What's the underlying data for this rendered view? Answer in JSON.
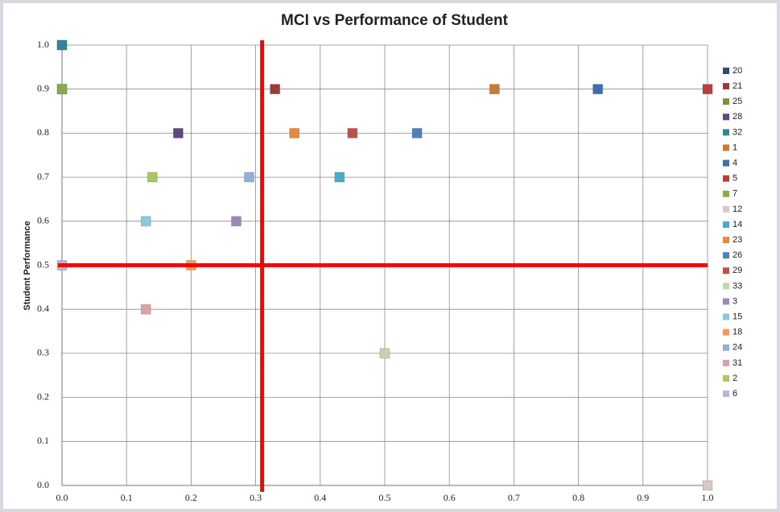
{
  "chart_data": {
    "type": "scatter",
    "title": "MCI vs Performance of Student",
    "ylabel": "Student Performance",
    "xlim": [
      0,
      1
    ],
    "ylim": [
      0,
      1
    ],
    "xticks": [
      {
        "value": 0,
        "label": "0.0"
      },
      0.1,
      0.2,
      0.3,
      0.4,
      0.5,
      0.6,
      0.7,
      0.8,
      0.9,
      {
        "value": 1,
        "label": "1.0"
      }
    ],
    "yticks": [
      {
        "value": 0,
        "label": "0.0"
      },
      0.1,
      0.2,
      0.3,
      0.4,
      0.5,
      0.6,
      0.7,
      0.8,
      0.9,
      {
        "value": 1,
        "label": "1.0"
      }
    ],
    "grid": true,
    "legend": "right",
    "threshold_lines": {
      "x": 0.31,
      "y": 0.5,
      "color": "#ff0000"
    },
    "series": [
      {
        "name": "20",
        "color": "#2c4d75",
        "x": [
          0
        ],
        "values": [
          1
        ]
      },
      {
        "name": "21",
        "color": "#9b3b38",
        "x": [
          0.33
        ],
        "values": [
          0.9
        ]
      },
      {
        "name": "25",
        "color": "#77933c",
        "x": [
          0
        ],
        "values": [
          0.9
        ]
      },
      {
        "name": "28",
        "color": "#5f4a7b",
        "x": [
          0.18
        ],
        "values": [
          0.8
        ]
      },
      {
        "name": "32",
        "color": "#31859c",
        "x": [
          0
        ],
        "values": [
          1
        ]
      },
      {
        "name": "1",
        "color": "#c77c30",
        "x": [
          0.67
        ],
        "values": [
          0.9
        ]
      },
      {
        "name": "4",
        "color": "#3d6fae",
        "x": [
          0.83
        ],
        "values": [
          0.9
        ]
      },
      {
        "name": "5",
        "color": "#b8403c",
        "x": [
          1
        ],
        "values": [
          0.9
        ]
      },
      {
        "name": "7",
        "color": "#8aab4a",
        "x": [
          0
        ],
        "values": [
          0.9
        ]
      },
      {
        "name": "12",
        "color": "#d9c8c8",
        "x": [
          1
        ],
        "values": [
          0
        ]
      },
      {
        "name": "14",
        "color": "#4aacc6",
        "x": [
          0.43
        ],
        "values": [
          0.7
        ]
      },
      {
        "name": "23",
        "color": "#e48b3f",
        "x": [
          0.36
        ],
        "values": [
          0.8
        ]
      },
      {
        "name": "26",
        "color": "#4f81bd",
        "x": [
          0.55
        ],
        "values": [
          0.8
        ]
      },
      {
        "name": "29",
        "color": "#c0504d",
        "x": [
          0.45
        ],
        "values": [
          0.8
        ]
      },
      {
        "name": "33",
        "color": "#c3d6a9",
        "x": [
          0.5
        ],
        "values": [
          0.3
        ]
      },
      {
        "name": "3",
        "color": "#9c8ab5",
        "x": [
          0.27
        ],
        "values": [
          0.6
        ]
      },
      {
        "name": "15",
        "color": "#8ec7da",
        "x": [
          0.13
        ],
        "values": [
          0.6
        ]
      },
      {
        "name": "18",
        "color": "#f79a5a",
        "x": [
          0.2
        ],
        "values": [
          0.5
        ]
      },
      {
        "name": "24",
        "color": "#95aed3",
        "x": [
          0.29
        ],
        "values": [
          0.7
        ]
      },
      {
        "name": "31",
        "color": "#d9a3a2",
        "x": [
          0.13
        ],
        "values": [
          0.4
        ]
      },
      {
        "name": "2",
        "color": "#a9c95a",
        "x": [
          0.14
        ],
        "values": [
          0.7
        ]
      },
      {
        "name": "6",
        "color": "#b9b4d6",
        "x": [
          0
        ],
        "values": [
          0.5
        ]
      }
    ]
  }
}
